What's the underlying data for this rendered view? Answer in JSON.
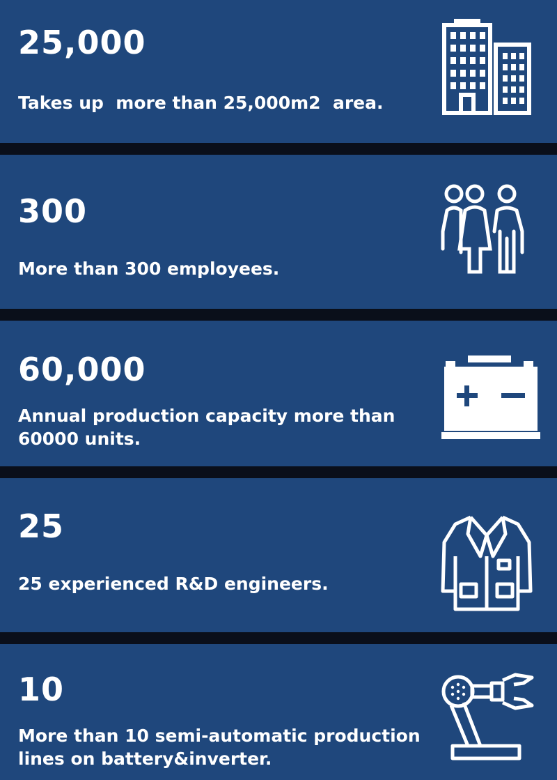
{
  "stats": [
    {
      "number": "25,000",
      "text": "Takes up  more than 25,000m2  area.",
      "icon": "buildings-icon"
    },
    {
      "number": "300",
      "text": "More than 300 employees.",
      "icon": "people-icon"
    },
    {
      "number": "60,000",
      "text": "Annual production capacity more than 60000 units.",
      "icon": "battery-icon"
    },
    {
      "number": "25",
      "text": "25 experienced R&D engineers.",
      "icon": "lab-coat-icon"
    },
    {
      "number": "10",
      "text": "More than 10 semi-automatic production lines on battery&inverter.",
      "icon": "robot-arm-icon"
    }
  ],
  "colors": {
    "card": "#1f477c",
    "separator": "#0a0f1a",
    "text": "#ffffff"
  }
}
